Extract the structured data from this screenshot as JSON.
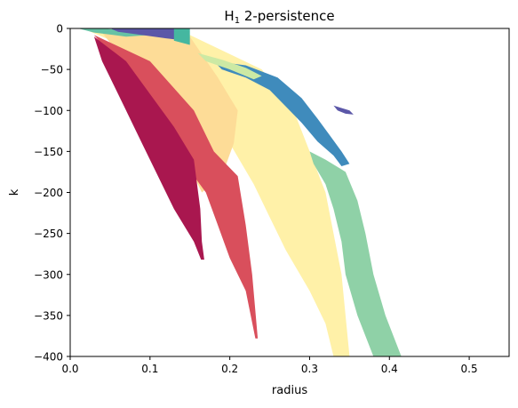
{
  "chart_data": {
    "type": "area",
    "title_main": "H",
    "title_sub": "1",
    "title_rest": " 2-persistence",
    "xlabel": "radius",
    "ylabel": "k",
    "xlim": [
      0.0,
      0.55
    ],
    "ylim": [
      -400,
      0
    ],
    "xticks": [
      0.0,
      0.1,
      0.2,
      0.3,
      0.4,
      0.5
    ],
    "xtick_labels": [
      "0.0",
      "0.1",
      "0.2",
      "0.3",
      "0.4",
      "0.5"
    ],
    "yticks": [
      0,
      -50,
      -100,
      -150,
      -200,
      -250,
      -300,
      -350,
      -400
    ],
    "ytick_labels": [
      "0",
      "−50",
      "−100",
      "−150",
      "−200",
      "−250",
      "−300",
      "−350",
      "−400"
    ],
    "grid": false,
    "regions": [
      {
        "color": "#fff1a8",
        "points": [
          [
            0.02,
            -2
          ],
          [
            0.15,
            -8
          ],
          [
            0.24,
            -50
          ],
          [
            0.28,
            -100
          ],
          [
            0.3,
            -150
          ],
          [
            0.32,
            -200
          ],
          [
            0.33,
            -250
          ],
          [
            0.34,
            -300
          ],
          [
            0.345,
            -350
          ],
          [
            0.35,
            -400
          ],
          [
            0.33,
            -400
          ],
          [
            0.32,
            -360
          ],
          [
            0.3,
            -320
          ],
          [
            0.27,
            -270
          ],
          [
            0.25,
            -230
          ],
          [
            0.23,
            -190
          ],
          [
            0.2,
            -140
          ],
          [
            0.16,
            -90
          ],
          [
            0.09,
            -30
          ]
        ]
      },
      {
        "color": "#fddc97",
        "points": [
          [
            0.04,
            -5
          ],
          [
            0.15,
            -10
          ],
          [
            0.185,
            -60
          ],
          [
            0.21,
            -100
          ],
          [
            0.205,
            -140
          ],
          [
            0.19,
            -180
          ],
          [
            0.165,
            -200
          ],
          [
            0.14,
            -150
          ],
          [
            0.1,
            -80
          ]
        ]
      },
      {
        "color": "#d94f5c",
        "points": [
          [
            0.03,
            -8
          ],
          [
            0.1,
            -40
          ],
          [
            0.155,
            -100
          ],
          [
            0.18,
            -150
          ],
          [
            0.21,
            -180
          ],
          [
            0.22,
            -240
          ],
          [
            0.228,
            -300
          ],
          [
            0.235,
            -378
          ],
          [
            0.232,
            -378
          ],
          [
            0.22,
            -320
          ],
          [
            0.2,
            -280
          ],
          [
            0.185,
            -240
          ],
          [
            0.17,
            -200
          ],
          [
            0.14,
            -160
          ],
          [
            0.11,
            -110
          ],
          [
            0.075,
            -60
          ]
        ]
      },
      {
        "color": "#a9174f",
        "points": [
          [
            0.03,
            -10
          ],
          [
            0.07,
            -40
          ],
          [
            0.1,
            -80
          ],
          [
            0.13,
            -120
          ],
          [
            0.155,
            -160
          ],
          [
            0.163,
            -220
          ],
          [
            0.165,
            -260
          ],
          [
            0.168,
            -282
          ],
          [
            0.164,
            -282
          ],
          [
            0.155,
            -260
          ],
          [
            0.13,
            -220
          ],
          [
            0.11,
            -180
          ],
          [
            0.09,
            -140
          ],
          [
            0.07,
            -100
          ],
          [
            0.05,
            -60
          ],
          [
            0.04,
            -40
          ]
        ]
      },
      {
        "color": "#8fd1a7",
        "points": [
          [
            0.3,
            -150
          ],
          [
            0.32,
            -160
          ],
          [
            0.345,
            -175
          ],
          [
            0.36,
            -210
          ],
          [
            0.37,
            -250
          ],
          [
            0.38,
            -300
          ],
          [
            0.395,
            -350
          ],
          [
            0.415,
            -400
          ],
          [
            0.38,
            -400
          ],
          [
            0.36,
            -350
          ],
          [
            0.345,
            -300
          ],
          [
            0.34,
            -260
          ],
          [
            0.33,
            -220
          ],
          [
            0.32,
            -190
          ],
          [
            0.305,
            -165
          ]
        ]
      },
      {
        "color": "#3f8bbc",
        "points": [
          [
            0.18,
            -40
          ],
          [
            0.22,
            -45
          ],
          [
            0.26,
            -60
          ],
          [
            0.29,
            -85
          ],
          [
            0.31,
            -110
          ],
          [
            0.325,
            -130
          ],
          [
            0.34,
            -150
          ],
          [
            0.35,
            -165
          ],
          [
            0.34,
            -168
          ],
          [
            0.33,
            -155
          ],
          [
            0.31,
            -138
          ],
          [
            0.29,
            -115
          ],
          [
            0.27,
            -95
          ],
          [
            0.25,
            -75
          ],
          [
            0.22,
            -60
          ],
          [
            0.19,
            -50
          ]
        ]
      },
      {
        "color": "#cce9a4",
        "points": [
          [
            0.16,
            -30
          ],
          [
            0.19,
            -38
          ],
          [
            0.22,
            -48
          ],
          [
            0.24,
            -58
          ],
          [
            0.23,
            -62
          ],
          [
            0.2,
            -50
          ],
          [
            0.17,
            -40
          ]
        ]
      },
      {
        "color": "#66c2a5",
        "points": [
          [
            0.01,
            0
          ],
          [
            0.04,
            0
          ],
          [
            0.08,
            -3
          ],
          [
            0.1,
            -8
          ],
          [
            0.07,
            -10
          ],
          [
            0.03,
            -5
          ]
        ]
      },
      {
        "color": "#5b57a8",
        "points": [
          [
            0.05,
            0
          ],
          [
            0.145,
            0
          ],
          [
            0.145,
            -15
          ],
          [
            0.12,
            -12
          ],
          [
            0.09,
            -8
          ],
          [
            0.06,
            -4
          ]
        ]
      },
      {
        "color": "#45b7a0",
        "points": [
          [
            0.13,
            0
          ],
          [
            0.15,
            0
          ],
          [
            0.15,
            -20
          ],
          [
            0.13,
            -15
          ]
        ]
      },
      {
        "color": "#5b57a8",
        "points": [
          [
            0.33,
            -94
          ],
          [
            0.35,
            -100
          ],
          [
            0.355,
            -105
          ],
          [
            0.345,
            -104
          ],
          [
            0.335,
            -100
          ]
        ]
      }
    ]
  }
}
